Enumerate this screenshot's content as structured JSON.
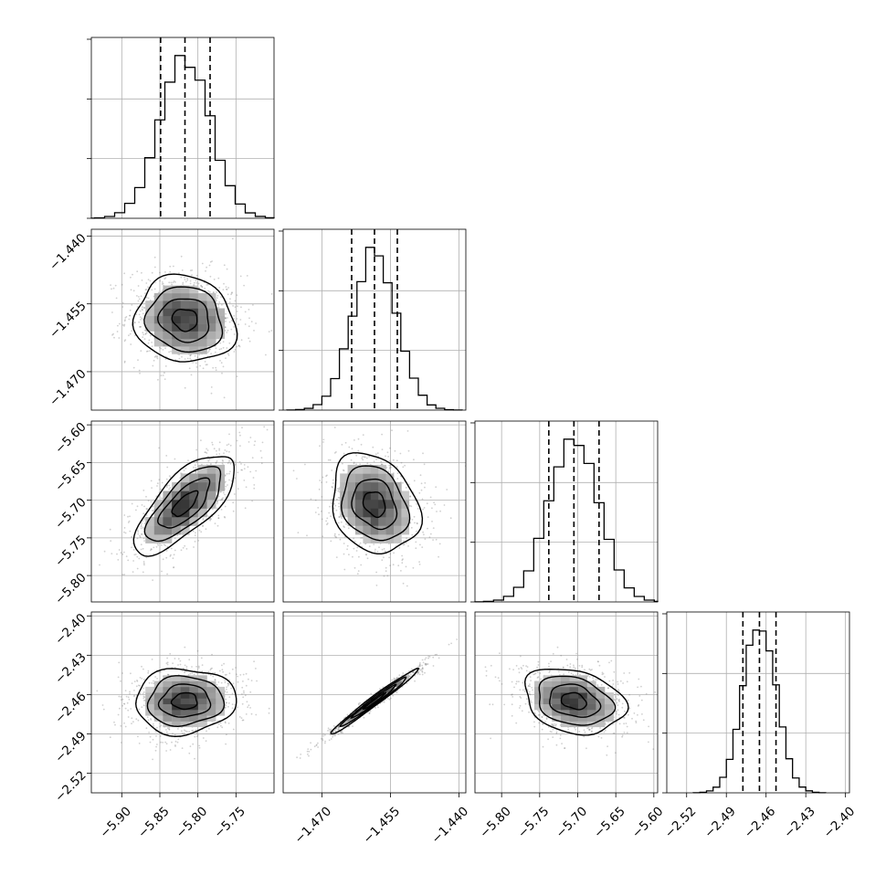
{
  "chart_data": {
    "type": "corner",
    "colors": {
      "line": "#000000",
      "scatter": "#8a8a8a",
      "grid": "#b0b0b0"
    },
    "grid": true,
    "parameters": [
      {
        "mean": -5.817,
        "std": 0.033,
        "range": [
          -5.94,
          -5.7
        ],
        "ticks": [
          "−5.90",
          "−5.85",
          "−5.80",
          "−5.75"
        ]
      },
      {
        "mean": -1.4585,
        "std": 0.0048,
        "range": [
          -1.4785,
          -1.4385
        ],
        "ticks": [
          "−1.470",
          "−1.455",
          "−1.440"
        ]
      },
      {
        "mean": -5.705,
        "std": 0.033,
        "range": [
          -5.835,
          -5.595
        ],
        "ticks": [
          "−5.80",
          "−5.75",
          "−5.70",
          "−5.65",
          "−5.60"
        ]
      },
      {
        "mean": -2.465,
        "std": 0.0125,
        "range": [
          -2.535,
          -2.397
        ],
        "ticks": [
          "−2.52",
          "−2.49",
          "−2.46",
          "−2.43",
          "−2.40"
        ]
      }
    ],
    "quantiles": [
      {
        "q16": -5.849,
        "q50": -5.817,
        "q84": -5.784
      },
      {
        "q16": -1.4635,
        "q50": -1.4585,
        "q84": -1.4535
      },
      {
        "q16": -5.738,
        "q50": -5.705,
        "q84": -5.672
      },
      {
        "q16": -2.4775,
        "q50": -2.465,
        "q84": -2.4525
      }
    ],
    "diagonal_hist_ticks": [
      [
        "",
        "",
        ""
      ],
      [
        "",
        "",
        ""
      ],
      [
        "",
        "",
        ""
      ],
      [
        "",
        "",
        ""
      ]
    ],
    "correlations": [
      {
        "row": 1,
        "col": 0,
        "rho": -0.1
      },
      {
        "row": 2,
        "col": 0,
        "rho": 0.72
      },
      {
        "row": 2,
        "col": 1,
        "rho": -0.22
      },
      {
        "row": 3,
        "col": 0,
        "rho": 0.05
      },
      {
        "row": 3,
        "col": 1,
        "rho": 0.985
      },
      {
        "row": 3,
        "col": 2,
        "rho": -0.25
      }
    ],
    "histogram_bins": 20,
    "contour_sigma_levels": [
      0.5,
      1.0,
      1.5,
      2.0
    ]
  }
}
